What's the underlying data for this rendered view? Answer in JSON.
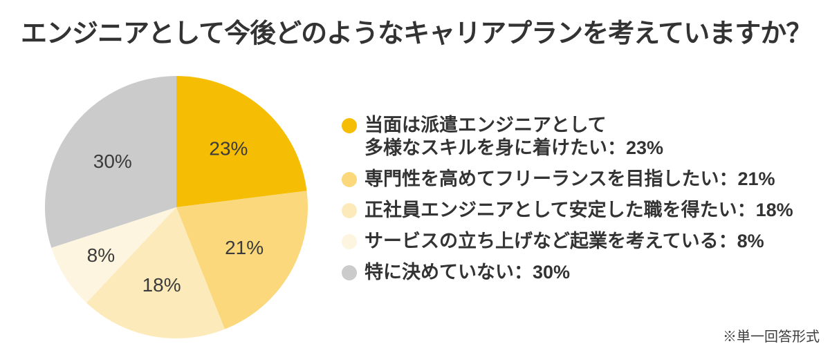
{
  "title": "エンジニアとして今後どのようなキャリアプランを考えていますか？",
  "note": "※単一回答形式",
  "chart_data": {
    "type": "pie",
    "title": "エンジニアとして今後どのようなキャリアプランを考えていますか？",
    "categories": [
      "当面は派遣エンジニアとして多様なスキルを身に着けたい",
      "専門性を高めてフリーランスを目指したい",
      "正社員エンジニアとして安定した職を得たい",
      "サービスの立ち上げなど起業を考えている",
      "特に決めていない"
    ],
    "values": [
      23,
      21,
      18,
      8,
      30
    ],
    "unit": "%",
    "slice_labels": [
      "23%",
      "21%",
      "18%",
      "8%",
      "30%"
    ],
    "colors": [
      "#F6BD05",
      "#FAD87B",
      "#FCEABA",
      "#FDF5DF",
      "#CBCBCB"
    ],
    "start_angle_deg": 0,
    "direction": "clockwise",
    "legend_position": "right",
    "grid": false
  },
  "legend": {
    "items": [
      {
        "label": "当面は派遣エンジニアとして\n多様なスキルを身に着けたい：23%",
        "color": "#F6BD05"
      },
      {
        "label": "専門性を高めてフリーランスを目指したい：21%",
        "color": "#FAD87B"
      },
      {
        "label": "正社員エンジニアとして安定した職を得たい：18%",
        "color": "#FCEABA"
      },
      {
        "label": "サービスの立ち上げなど起業を考えている：8%",
        "color": "#FDF5DF"
      },
      {
        "label": "特に決めていない：30%",
        "color": "#CBCBCB"
      }
    ]
  }
}
